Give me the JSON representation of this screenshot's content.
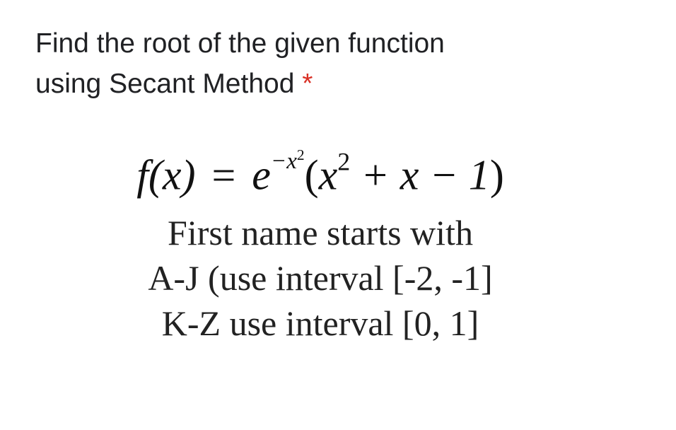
{
  "prompt": {
    "line1": "Find the root of the given function",
    "line2_prefix": "using Secant Method ",
    "required_mark": "*"
  },
  "formula": {
    "lhs": "f(x)",
    "equals": "=",
    "e": "e",
    "exp_neg": "−x",
    "exp_sq": "2",
    "open": "(",
    "x": "x",
    "x_sq": "2",
    "plus_x": " + x − 1",
    "close": ")"
  },
  "instructions": {
    "line1": "First name starts with",
    "line2": "A-J (use interval [-2, -1]",
    "line3": "K-Z use interval [0, 1]"
  },
  "colors": {
    "text": "#1f1f1f",
    "asterisk": "#d93025",
    "background": "#ffffff"
  }
}
